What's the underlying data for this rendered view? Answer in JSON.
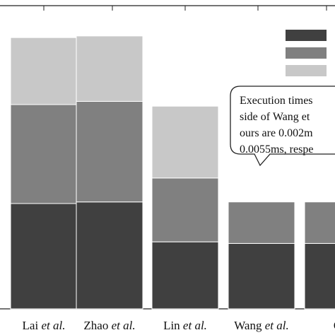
{
  "chart_data": {
    "type": "bar",
    "stacked": true,
    "categories": [
      {
        "name": "Lai",
        "suffix": "et al."
      },
      {
        "name": "Zhao",
        "suffix": "et al."
      },
      {
        "name": "Lin",
        "suffix": "et al."
      },
      {
        "name": "Wang",
        "suffix": "et al."
      },
      {
        "name": "O",
        "suffix": ""
      }
    ],
    "series": [
      {
        "color": "#404040",
        "values": [
          0.0066,
          0.0067,
          0.0042,
          0.0041,
          0.0041
        ]
      },
      {
        "color": "#808080",
        "values": [
          0.0062,
          0.0063,
          0.004,
          0.0026,
          0.0026
        ]
      },
      {
        "color": "#c8c8c8",
        "values": [
          0.0042,
          0.0041,
          0.0045,
          0,
          0
        ]
      }
    ],
    "ylim": [
      0,
      0.019
    ],
    "grid": false,
    "legend_position": "top-right",
    "annotation_lines": [
      "Execution times",
      "side of Wang et",
      "ours are 0.002m",
      "0.0055ms, respe"
    ]
  }
}
